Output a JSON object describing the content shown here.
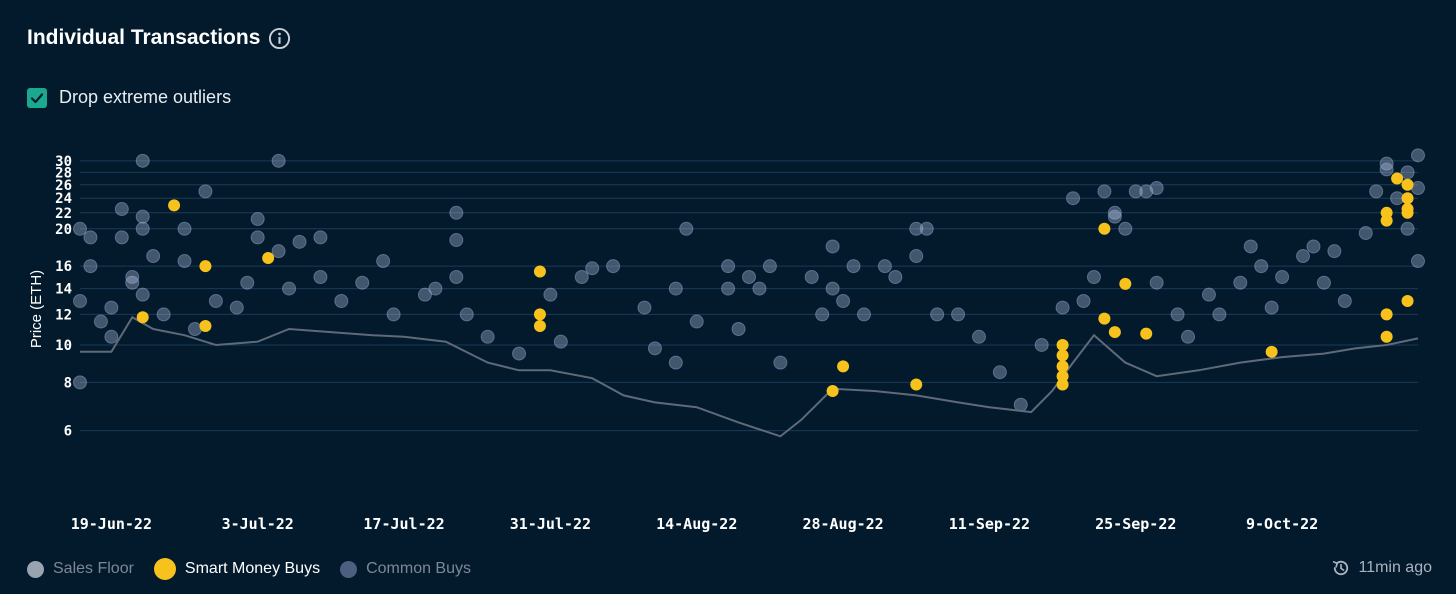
{
  "header": {
    "title": "Individual Transactions",
    "info_icon": "info-circle-icon"
  },
  "filter": {
    "label": "Drop extreme outliers",
    "checked": true
  },
  "legend": [
    {
      "label": "Sales Floor",
      "color": "#9aa4b0",
      "text_color": "#7d8896"
    },
    {
      "label": "Smart Money Buys",
      "color": "#f7c21b",
      "text_color": "#ffffff"
    },
    {
      "label": "Common Buys",
      "color": "#4d5f7f",
      "text_color": "#7d8896"
    }
  ],
  "updated": {
    "label": "11min ago",
    "icon": "history-clock-icon"
  },
  "colors": {
    "background": "#021a2c",
    "grid": "#1b3a57",
    "smart": "#f7c21b",
    "common": "#b9c8ec",
    "floor": "#5e6a79"
  },
  "chart_data": {
    "type": "scatter",
    "title": "Individual Transactions",
    "xlabel": "",
    "ylabel": "Price (ETH)",
    "y_scale": "log",
    "xlim": [
      "2022-06-16",
      "2022-10-22"
    ],
    "ylim": [
      4.8,
      32
    ],
    "y_ticks": [
      6,
      8,
      10,
      12,
      14,
      16,
      20,
      22,
      24,
      26,
      28,
      30
    ],
    "x_ticks": [
      {
        "date": "2022-06-19",
        "label": "19-Jun-22"
      },
      {
        "date": "2022-07-03",
        "label": "3-Jul-22"
      },
      {
        "date": "2022-07-17",
        "label": "17-Jul-22"
      },
      {
        "date": "2022-07-31",
        "label": "31-Jul-22"
      },
      {
        "date": "2022-08-14",
        "label": "14-Aug-22"
      },
      {
        "date": "2022-08-28",
        "label": "28-Aug-22"
      },
      {
        "date": "2022-09-11",
        "label": "11-Sep-22"
      },
      {
        "date": "2022-09-25",
        "label": "25-Sep-22"
      },
      {
        "date": "2022-10-09",
        "label": "9-Oct-22"
      }
    ],
    "grid": true,
    "legend_position": "bottom-left",
    "series": [
      {
        "name": "Sales Floor",
        "type": "line",
        "points": [
          [
            "2022-06-16",
            9.6
          ],
          [
            "2022-06-19",
            9.6
          ],
          [
            "2022-06-21",
            11.8
          ],
          [
            "2022-06-23",
            11.0
          ],
          [
            "2022-06-26",
            10.6
          ],
          [
            "2022-06-29",
            10.0
          ],
          [
            "2022-07-03",
            10.2
          ],
          [
            "2022-07-06",
            11.0
          ],
          [
            "2022-07-10",
            10.8
          ],
          [
            "2022-07-14",
            10.6
          ],
          [
            "2022-07-17",
            10.5
          ],
          [
            "2022-07-21",
            10.2
          ],
          [
            "2022-07-25",
            9.0
          ],
          [
            "2022-07-28",
            8.6
          ],
          [
            "2022-07-31",
            8.6
          ],
          [
            "2022-08-04",
            8.2
          ],
          [
            "2022-08-07",
            7.4
          ],
          [
            "2022-08-10",
            7.1
          ],
          [
            "2022-08-14",
            6.9
          ],
          [
            "2022-08-18",
            6.3
          ],
          [
            "2022-08-22",
            5.8
          ],
          [
            "2022-08-24",
            6.4
          ],
          [
            "2022-08-27",
            7.7
          ],
          [
            "2022-08-31",
            7.6
          ],
          [
            "2022-09-04",
            7.4
          ],
          [
            "2022-09-08",
            7.1
          ],
          [
            "2022-09-11",
            6.9
          ],
          [
            "2022-09-15",
            6.7
          ],
          [
            "2022-09-17",
            7.6
          ],
          [
            "2022-09-19",
            9.0
          ],
          [
            "2022-09-21",
            10.6
          ],
          [
            "2022-09-24",
            9.0
          ],
          [
            "2022-09-27",
            8.3
          ],
          [
            "2022-10-01",
            8.6
          ],
          [
            "2022-10-05",
            9.0
          ],
          [
            "2022-10-09",
            9.3
          ],
          [
            "2022-10-13",
            9.5
          ],
          [
            "2022-10-16",
            9.8
          ],
          [
            "2022-10-19",
            10.0
          ],
          [
            "2022-10-22",
            10.4
          ]
        ]
      },
      {
        "name": "Smart Money Buys",
        "type": "scatter",
        "points": [
          [
            "2022-06-22",
            11.8
          ],
          [
            "2022-06-25",
            23.0
          ],
          [
            "2022-06-28",
            16.0
          ],
          [
            "2022-06-28",
            11.2
          ],
          [
            "2022-07-04",
            16.8
          ],
          [
            "2022-07-30",
            15.5
          ],
          [
            "2022-07-30",
            12.0
          ],
          [
            "2022-07-30",
            11.2
          ],
          [
            "2022-08-27",
            7.6
          ],
          [
            "2022-08-28",
            8.8
          ],
          [
            "2022-09-04",
            7.9
          ],
          [
            "2022-09-18",
            10.0
          ],
          [
            "2022-09-18",
            9.4
          ],
          [
            "2022-09-18",
            8.8
          ],
          [
            "2022-09-18",
            8.3
          ],
          [
            "2022-09-18",
            7.9
          ],
          [
            "2022-09-22",
            20.0
          ],
          [
            "2022-09-22",
            11.7
          ],
          [
            "2022-09-23",
            10.8
          ],
          [
            "2022-09-24",
            14.4
          ],
          [
            "2022-09-26",
            10.7
          ],
          [
            "2022-10-08",
            9.6
          ],
          [
            "2022-10-19",
            22.0
          ],
          [
            "2022-10-19",
            21.0
          ],
          [
            "2022-10-19",
            12.0
          ],
          [
            "2022-10-19",
            10.5
          ],
          [
            "2022-10-20",
            27.0
          ],
          [
            "2022-10-21",
            26.0
          ],
          [
            "2022-10-21",
            24.0
          ],
          [
            "2022-10-21",
            22.5
          ],
          [
            "2022-10-21",
            22.0
          ],
          [
            "2022-10-21",
            13.0
          ]
        ]
      },
      {
        "name": "Common Buys",
        "type": "scatter",
        "points": [
          [
            "2022-06-16",
            20.0
          ],
          [
            "2022-06-16",
            13.0
          ],
          [
            "2022-06-17",
            16.0
          ],
          [
            "2022-06-17",
            19.0
          ],
          [
            "2022-06-16",
            8.0
          ],
          [
            "2022-06-18",
            11.5
          ],
          [
            "2022-06-19",
            12.5
          ],
          [
            "2022-06-19",
            10.5
          ],
          [
            "2022-06-20",
            22.5
          ],
          [
            "2022-06-20",
            19.0
          ],
          [
            "2022-06-21",
            14.5
          ],
          [
            "2022-06-21",
            15.0
          ],
          [
            "2022-06-22",
            30.0
          ],
          [
            "2022-06-22",
            21.5
          ],
          [
            "2022-06-22",
            20.0
          ],
          [
            "2022-06-22",
            13.5
          ],
          [
            "2022-06-23",
            17.0
          ],
          [
            "2022-06-24",
            12.0
          ],
          [
            "2022-06-26",
            20.0
          ],
          [
            "2022-06-26",
            16.5
          ],
          [
            "2022-06-27",
            11.0
          ],
          [
            "2022-06-28",
            25.0
          ],
          [
            "2022-06-29",
            13.0
          ],
          [
            "2022-07-01",
            12.5
          ],
          [
            "2022-07-02",
            14.5
          ],
          [
            "2022-07-03",
            21.2
          ],
          [
            "2022-07-03",
            19.0
          ],
          [
            "2022-07-05",
            30.0
          ],
          [
            "2022-07-05",
            17.5
          ],
          [
            "2022-07-06",
            14.0
          ],
          [
            "2022-07-07",
            18.5
          ],
          [
            "2022-07-09",
            19.0
          ],
          [
            "2022-07-09",
            15.0
          ],
          [
            "2022-07-11",
            13.0
          ],
          [
            "2022-07-13",
            14.5
          ],
          [
            "2022-07-15",
            16.5
          ],
          [
            "2022-07-16",
            12.0
          ],
          [
            "2022-07-19",
            13.5
          ],
          [
            "2022-07-20",
            14.0
          ],
          [
            "2022-07-22",
            22.0
          ],
          [
            "2022-07-22",
            18.7
          ],
          [
            "2022-07-22",
            15.0
          ],
          [
            "2022-07-23",
            12.0
          ],
          [
            "2022-07-25",
            10.5
          ],
          [
            "2022-07-28",
            9.5
          ],
          [
            "2022-07-31",
            13.5
          ],
          [
            "2022-08-01",
            10.2
          ],
          [
            "2022-08-03",
            15.0
          ],
          [
            "2022-08-04",
            15.8
          ],
          [
            "2022-08-06",
            16.0
          ],
          [
            "2022-08-09",
            12.5
          ],
          [
            "2022-08-10",
            9.8
          ],
          [
            "2022-08-12",
            14.0
          ],
          [
            "2022-08-12",
            9.0
          ],
          [
            "2022-08-13",
            20.0
          ],
          [
            "2022-08-14",
            11.5
          ],
          [
            "2022-08-17",
            16.0
          ],
          [
            "2022-08-17",
            14.0
          ],
          [
            "2022-08-18",
            11.0
          ],
          [
            "2022-08-19",
            15.0
          ],
          [
            "2022-08-20",
            14.0
          ],
          [
            "2022-08-21",
            16.0
          ],
          [
            "2022-08-22",
            9.0
          ],
          [
            "2022-08-25",
            15.0
          ],
          [
            "2022-08-26",
            12.0
          ],
          [
            "2022-08-27",
            18.0
          ],
          [
            "2022-08-27",
            14.0
          ],
          [
            "2022-08-28",
            13.0
          ],
          [
            "2022-08-29",
            16.0
          ],
          [
            "2022-08-30",
            12.0
          ],
          [
            "2022-09-01",
            16.0
          ],
          [
            "2022-09-02",
            15.0
          ],
          [
            "2022-09-04",
            20.0
          ],
          [
            "2022-09-04",
            17.0
          ],
          [
            "2022-09-05",
            20.0
          ],
          [
            "2022-09-06",
            12.0
          ],
          [
            "2022-09-08",
            12.0
          ],
          [
            "2022-09-10",
            10.5
          ],
          [
            "2022-09-12",
            8.5
          ],
          [
            "2022-09-14",
            7.0
          ],
          [
            "2022-09-16",
            10.0
          ],
          [
            "2022-09-18",
            12.5
          ],
          [
            "2022-09-19",
            24.0
          ],
          [
            "2022-09-20",
            13.0
          ],
          [
            "2022-09-21",
            15.0
          ],
          [
            "2022-09-22",
            25.0
          ],
          [
            "2022-09-23",
            22.0
          ],
          [
            "2022-09-23",
            21.5
          ],
          [
            "2022-09-24",
            20.0
          ],
          [
            "2022-09-25",
            25.0
          ],
          [
            "2022-09-26",
            25.0
          ],
          [
            "2022-09-27",
            25.5
          ],
          [
            "2022-09-27",
            14.5
          ],
          [
            "2022-09-29",
            12.0
          ],
          [
            "2022-09-30",
            10.5
          ],
          [
            "2022-10-02",
            13.5
          ],
          [
            "2022-10-03",
            12.0
          ],
          [
            "2022-10-05",
            14.5
          ],
          [
            "2022-10-06",
            18.0
          ],
          [
            "2022-10-07",
            16.0
          ],
          [
            "2022-10-08",
            12.5
          ],
          [
            "2022-10-09",
            15.0
          ],
          [
            "2022-10-11",
            17.0
          ],
          [
            "2022-10-12",
            18.0
          ],
          [
            "2022-10-13",
            14.5
          ],
          [
            "2022-10-14",
            17.5
          ],
          [
            "2022-10-15",
            13.0
          ],
          [
            "2022-10-17",
            19.5
          ],
          [
            "2022-10-18",
            25.0
          ],
          [
            "2022-10-19",
            29.5
          ],
          [
            "2022-10-19",
            28.5
          ],
          [
            "2022-10-20",
            24.0
          ],
          [
            "2022-10-21",
            28.0
          ],
          [
            "2022-10-21",
            20.0
          ],
          [
            "2022-10-22",
            31.0
          ],
          [
            "2022-10-22",
            25.5
          ],
          [
            "2022-10-22",
            16.5
          ]
        ]
      }
    ]
  }
}
